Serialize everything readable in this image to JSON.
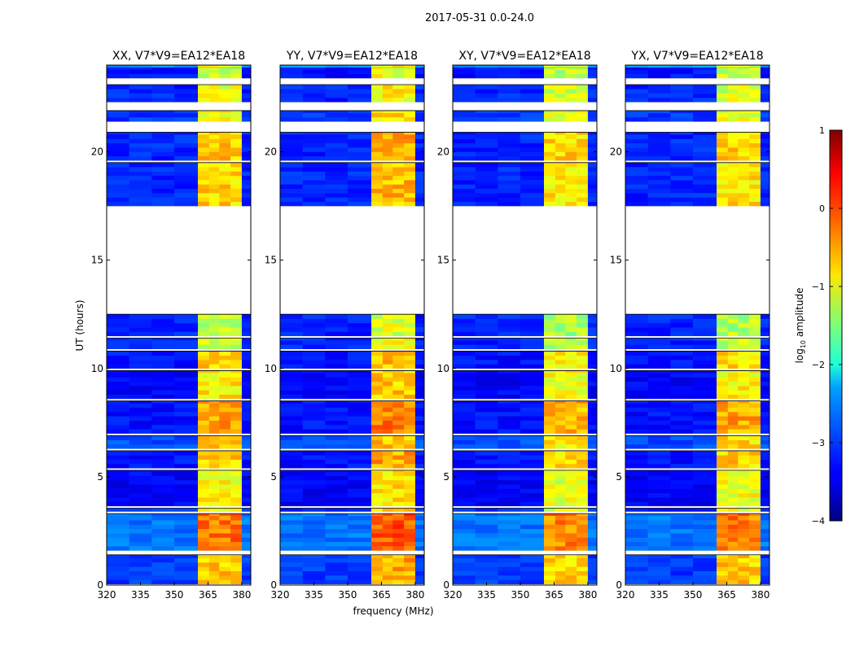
{
  "chart_data": {
    "type": "heatmap",
    "title": "2017-05-31 0.0-24.0",
    "xlabel": "frequency (MHz)",
    "ylabel": "UT (hours)",
    "xlim": [
      320,
      384
    ],
    "ylim": [
      0,
      24
    ],
    "xticks": [
      "320",
      "335",
      "350",
      "365",
      "380"
    ],
    "yticks": [
      "0",
      "5",
      "10",
      "15",
      "20"
    ],
    "colorbar": {
      "label": "log10 amplitude",
      "label_main": "log",
      "label_sub": "10",
      "label_rest": " amplitude",
      "range": [
        -4,
        1
      ],
      "ticks": [
        "1",
        "0",
        "−1",
        "−2",
        "−3",
        "−4"
      ],
      "colormap": "jet"
    },
    "panels": [
      {
        "title": "XX, V7*V9=EA12*EA18",
        "band_boost": 0
      },
      {
        "title": "YY, V7*V9=EA12*EA18",
        "band_boost": 0.15
      },
      {
        "title": "XY, V7*V9=EA12*EA18",
        "band_boost": -0.1
      },
      {
        "title": "YX, V7*V9=EA12*EA18",
        "band_boost": -0.05
      }
    ],
    "time_segments": [
      {
        "t": [
          0.05,
          1.4
        ],
        "bg": -3.1,
        "band": -0.6
      },
      {
        "t": [
          1.6,
          3.3
        ],
        "bg": -2.8,
        "band": -0.2
      },
      {
        "t": [
          3.4,
          3.55
        ],
        "bg": -3.2,
        "band": -0.9
      },
      {
        "t": [
          3.65,
          5.3
        ],
        "bg": -3.4,
        "band": -0.9
      },
      {
        "t": [
          5.4,
          6.2
        ],
        "bg": -3.3,
        "band": -0.6
      },
      {
        "t": [
          6.3,
          6.9
        ],
        "bg": -3.0,
        "band": -0.7
      },
      {
        "t": [
          7.0,
          8.5
        ],
        "bg": -3.3,
        "band": -0.4
      },
      {
        "t": [
          8.6,
          9.9
        ],
        "bg": -3.4,
        "band": -0.8
      },
      {
        "t": [
          10.0,
          10.8
        ],
        "bg": -3.3,
        "band": -0.7
      },
      {
        "t": [
          10.9,
          11.4
        ],
        "bg": -3.2,
        "band": -1.1
      },
      {
        "t": [
          11.5,
          12.5
        ],
        "bg": -3.2,
        "band": -1.2
      },
      {
        "t": [
          17.5,
          19.5
        ],
        "bg": -3.2,
        "band": -0.7
      },
      {
        "t": [
          19.6,
          20.9
        ],
        "bg": -3.2,
        "band": -0.6
      },
      {
        "t": [
          21.4,
          21.9
        ],
        "bg": -3.1,
        "band": -0.9
      },
      {
        "t": [
          22.3,
          23.1
        ],
        "bg": -3.2,
        "band": -1.0
      },
      {
        "t": [
          23.4,
          23.9
        ],
        "bg": -3.3,
        "band": -1.1
      },
      {
        "t": [
          23.9,
          24.0
        ],
        "bg": -2.6,
        "band": -1.0
      }
    ],
    "freq_bands": [
      {
        "f": [
          320,
          330
        ],
        "type": "bg"
      },
      {
        "f": [
          330,
          340
        ],
        "type": "bg"
      },
      {
        "f": [
          340,
          350
        ],
        "type": "bg"
      },
      {
        "f": [
          350,
          360.5
        ],
        "type": "bg"
      },
      {
        "f": [
          360.5,
          365.5
        ],
        "type": "band"
      },
      {
        "f": [
          365.5,
          370
        ],
        "type": "band"
      },
      {
        "f": [
          370,
          375
        ],
        "type": "band"
      },
      {
        "f": [
          375,
          380
        ],
        "type": "band"
      },
      {
        "f": [
          380,
          384
        ],
        "type": "bg"
      }
    ]
  }
}
